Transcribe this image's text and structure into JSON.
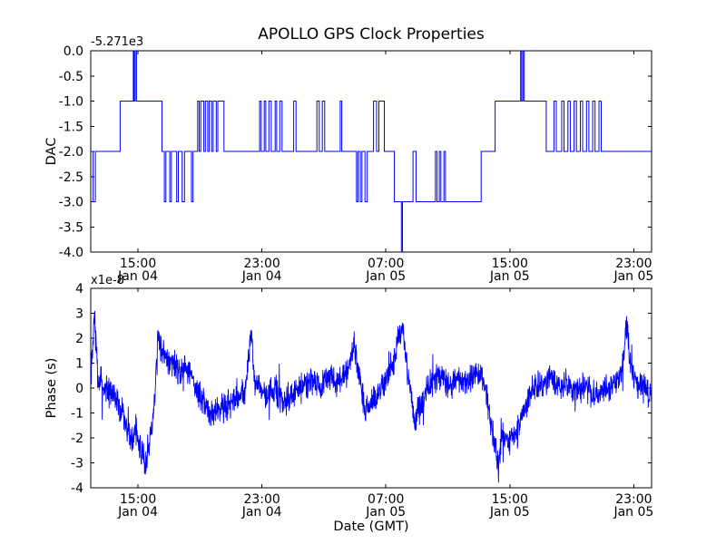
{
  "title": "APOLLO GPS Clock Properties",
  "colors": {
    "line": "#0000ff",
    "background": "#ffffff",
    "text": "#000000"
  },
  "x_axis": {
    "range_hours": [
      0,
      36.2
    ],
    "tick_hours": [
      3.05,
      11.05,
      19.05,
      27.05,
      35.05
    ],
    "ticks": [
      {
        "time": "15:00",
        "date": "Jan 04"
      },
      {
        "time": "23:00",
        "date": "Jan 04"
      },
      {
        "time": "07:00",
        "date": "Jan 05"
      },
      {
        "time": "15:00",
        "date": "Jan 05"
      },
      {
        "time": "23:00",
        "date": "Jan 05"
      }
    ]
  },
  "top_plot": {
    "ylabel": "DAC",
    "offset_text": "-5.271e3",
    "ylim": [
      -4.0,
      0.0
    ],
    "yticks": [
      "0.0",
      "-0.5",
      "-1.0",
      "-1.5",
      "-2.0",
      "-2.5",
      "-3.0",
      "-3.5",
      "-4.0"
    ]
  },
  "bottom_plot": {
    "ylabel": "Phase (s)",
    "multiplier_text": "x1e-8",
    "ylim": [
      -4,
      4
    ],
    "yticks": [
      "4",
      "3",
      "2",
      "1",
      "0",
      "-1",
      "-2",
      "-3",
      "-4"
    ],
    "xlabel": "Date (GMT)"
  },
  "chart_data": [
    {
      "type": "line",
      "subtype": "step-post",
      "name": "DAC",
      "title": "APOLLO GPS Clock Properties",
      "ylabel": "DAC",
      "y_offset_text": "-5.271e3",
      "ylim": [
        -4,
        0
      ],
      "x_unit": "hours from ~12:00 Jan 04 GMT",
      "x_tick_labels": [
        "15:00 Jan 04",
        "23:00 Jan 04",
        "07:00 Jan 05",
        "15:00 Jan 05",
        "23:00 Jan 05"
      ],
      "grid": false,
      "steps": [
        [
          0,
          -2
        ],
        [
          0.15,
          -3
        ],
        [
          0.3,
          -2
        ],
        [
          1.9,
          -1
        ],
        [
          2.75,
          0
        ],
        [
          2.8,
          -1
        ],
        [
          2.87,
          0
        ],
        [
          2.95,
          -1
        ],
        [
          4.6,
          -2
        ],
        [
          4.75,
          -3
        ],
        [
          4.85,
          -2
        ],
        [
          5.1,
          -3
        ],
        [
          5.2,
          -2
        ],
        [
          5.55,
          -3
        ],
        [
          5.65,
          -2
        ],
        [
          5.9,
          -3
        ],
        [
          6.05,
          -2
        ],
        [
          6.5,
          -3
        ],
        [
          6.6,
          -2
        ],
        [
          6.9,
          -1
        ],
        [
          7.0,
          -2
        ],
        [
          7.1,
          -1
        ],
        [
          7.3,
          -2
        ],
        [
          7.4,
          -1
        ],
        [
          7.55,
          -2
        ],
        [
          7.65,
          -1
        ],
        [
          7.8,
          -2
        ],
        [
          7.9,
          -1
        ],
        [
          8.1,
          -2
        ],
        [
          8.2,
          -1
        ],
        [
          8.6,
          -2
        ],
        [
          10.9,
          -1
        ],
        [
          11.0,
          -2
        ],
        [
          11.2,
          -1
        ],
        [
          11.3,
          -2
        ],
        [
          11.5,
          -1
        ],
        [
          11.65,
          -2
        ],
        [
          11.9,
          -1
        ],
        [
          12.0,
          -2
        ],
        [
          12.2,
          -1
        ],
        [
          12.35,
          -2
        ],
        [
          13.1,
          -1
        ],
        [
          13.25,
          -2
        ],
        [
          14.6,
          -1
        ],
        [
          14.75,
          -2
        ],
        [
          14.95,
          -1
        ],
        [
          15.1,
          -2
        ],
        [
          16.1,
          -1
        ],
        [
          16.2,
          -2
        ],
        [
          17.15,
          -3
        ],
        [
          17.25,
          -2
        ],
        [
          17.4,
          -3
        ],
        [
          17.5,
          -2
        ],
        [
          17.7,
          -3
        ],
        [
          17.85,
          -2
        ],
        [
          18.25,
          -1
        ],
        [
          18.45,
          -2
        ],
        [
          18.6,
          -1
        ],
        [
          18.95,
          -2
        ],
        [
          19.6,
          -3
        ],
        [
          20.05,
          -4
        ],
        [
          20.12,
          -3
        ],
        [
          20.8,
          -2
        ],
        [
          21.0,
          -3
        ],
        [
          22.25,
          -2
        ],
        [
          22.35,
          -3
        ],
        [
          22.5,
          -2
        ],
        [
          22.6,
          -3
        ],
        [
          22.8,
          -2
        ],
        [
          22.9,
          -3
        ],
        [
          25.2,
          -2
        ],
        [
          26.1,
          -1
        ],
        [
          27.75,
          0
        ],
        [
          27.82,
          -1
        ],
        [
          27.9,
          0
        ],
        [
          27.98,
          -1
        ],
        [
          29.4,
          -2
        ],
        [
          29.9,
          -1
        ],
        [
          30.05,
          -2
        ],
        [
          30.4,
          -1
        ],
        [
          30.55,
          -2
        ],
        [
          30.8,
          -1
        ],
        [
          30.95,
          -2
        ],
        [
          31.2,
          -1
        ],
        [
          31.35,
          -2
        ],
        [
          31.6,
          -1
        ],
        [
          31.75,
          -2
        ],
        [
          32.0,
          -1
        ],
        [
          32.15,
          -2
        ],
        [
          32.4,
          -1
        ],
        [
          32.55,
          -2
        ],
        [
          32.8,
          -1
        ],
        [
          32.95,
          -2
        ],
        [
          33.3,
          -2
        ]
      ]
    },
    {
      "type": "line",
      "name": "Phase (s)",
      "ylabel": "Phase (s)",
      "y_scale_text": "x1e-8",
      "ylim": [
        -4,
        4
      ],
      "xlabel": "Date (GMT)",
      "x_unit": "hours from ~12:00 Jan 04 GMT",
      "grid": false,
      "trend_keypoints": [
        [
          0,
          0.2
        ],
        [
          0.25,
          3.0
        ],
        [
          0.45,
          0.4
        ],
        [
          1.0,
          -0.1
        ],
        [
          1.6,
          -0.4
        ],
        [
          2.2,
          -1.2
        ],
        [
          2.6,
          -2.2
        ],
        [
          2.9,
          -1.7
        ],
        [
          3.2,
          -2.5
        ],
        [
          3.5,
          -3.0
        ],
        [
          3.8,
          -2.2
        ],
        [
          4.1,
          -0.6
        ],
        [
          4.35,
          1.9
        ],
        [
          4.7,
          1.5
        ],
        [
          5.2,
          1.1
        ],
        [
          5.7,
          0.7
        ],
        [
          6.1,
          0.9
        ],
        [
          6.6,
          0.3
        ],
        [
          7.1,
          -0.4
        ],
        [
          7.7,
          -1.0
        ],
        [
          8.3,
          -0.8
        ],
        [
          8.9,
          -0.7
        ],
        [
          9.4,
          -0.3
        ],
        [
          10.0,
          -0.1
        ],
        [
          10.35,
          2.2
        ],
        [
          10.6,
          0.3
        ],
        [
          11.2,
          -0.3
        ],
        [
          11.8,
          -0.1
        ],
        [
          12.4,
          -0.5
        ],
        [
          13.0,
          -0.3
        ],
        [
          13.6,
          0.0
        ],
        [
          14.2,
          0.3
        ],
        [
          14.8,
          0.1
        ],
        [
          15.4,
          0.4
        ],
        [
          16.0,
          0.2
        ],
        [
          16.6,
          0.6
        ],
        [
          17.0,
          1.8
        ],
        [
          17.35,
          0.4
        ],
        [
          17.7,
          -0.9
        ],
        [
          18.3,
          -0.5
        ],
        [
          18.9,
          0.2
        ],
        [
          19.5,
          0.9
        ],
        [
          19.9,
          2.1
        ],
        [
          20.15,
          2.2
        ],
        [
          20.5,
          0.4
        ],
        [
          20.9,
          -1.4
        ],
        [
          21.4,
          -0.5
        ],
        [
          22.0,
          0.2
        ],
        [
          22.6,
          0.4
        ],
        [
          23.2,
          0.0
        ],
        [
          23.8,
          0.5
        ],
        [
          24.4,
          0.2
        ],
        [
          25.0,
          0.6
        ],
        [
          25.5,
          -0.1
        ],
        [
          25.9,
          -1.6
        ],
        [
          26.3,
          -3.2
        ],
        [
          26.6,
          -1.9
        ],
        [
          27.0,
          -2.3
        ],
        [
          27.5,
          -1.7
        ],
        [
          27.9,
          -1.0
        ],
        [
          28.4,
          -0.2
        ],
        [
          29.0,
          0.2
        ],
        [
          29.6,
          0.5
        ],
        [
          30.1,
          0.0
        ],
        [
          30.7,
          0.3
        ],
        [
          31.3,
          -0.2
        ],
        [
          31.9,
          0.1
        ],
        [
          32.5,
          -0.4
        ],
        [
          33.1,
          -0.1
        ],
        [
          33.7,
          0.1
        ],
        [
          34.3,
          0.6
        ],
        [
          34.6,
          2.7
        ],
        [
          34.85,
          0.7
        ],
        [
          35.3,
          0.1
        ],
        [
          35.8,
          0.0
        ],
        [
          36.2,
          -0.3
        ]
      ],
      "noise_amplitude": 0.42,
      "outlier_probability": 0.02,
      "outlier_scale": 2.5,
      "n_points": 2200,
      "seed": 7
    }
  ]
}
